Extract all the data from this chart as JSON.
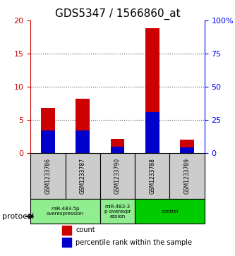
{
  "title": "GDS5347 / 1566860_at",
  "samples": [
    "GSM1233786",
    "GSM1233787",
    "GSM1233790",
    "GSM1233788",
    "GSM1233789"
  ],
  "count_values": [
    6.8,
    8.2,
    2.2,
    18.8,
    2.1
  ],
  "percentile_values": [
    17.5,
    17.5,
    5.0,
    31.0,
    4.5
  ],
  "ylim_left": [
    0,
    20
  ],
  "ylim_right": [
    0,
    100
  ],
  "yticks_left": [
    0,
    5,
    10,
    15,
    20
  ],
  "ytick_labels_left": [
    "0",
    "5",
    "10",
    "15",
    "20"
  ],
  "yticks_right": [
    0,
    25,
    50,
    75,
    100
  ],
  "ytick_labels_right": [
    "0",
    "25",
    "50",
    "75",
    "100%"
  ],
  "bar_color_red": "#cc0000",
  "bar_color_blue": "#0000cc",
  "bar_width": 0.4,
  "group_boundaries": [
    [
      0,
      2,
      "miR-483-5p\noverexpression",
      "#90ee90"
    ],
    [
      2,
      3,
      "miR-483-3\np overexpr\nession",
      "#90ee90"
    ],
    [
      3,
      5,
      "control",
      "#00cc00"
    ]
  ],
  "protocol_label": "protocol",
  "legend_count_label": "count",
  "legend_percentile_label": "percentile rank within the sample",
  "grid_color": "#555555",
  "bg_color": "#ffffff",
  "sample_box_color": "#cccccc",
  "title_fontsize": 11,
  "tick_fontsize": 8
}
